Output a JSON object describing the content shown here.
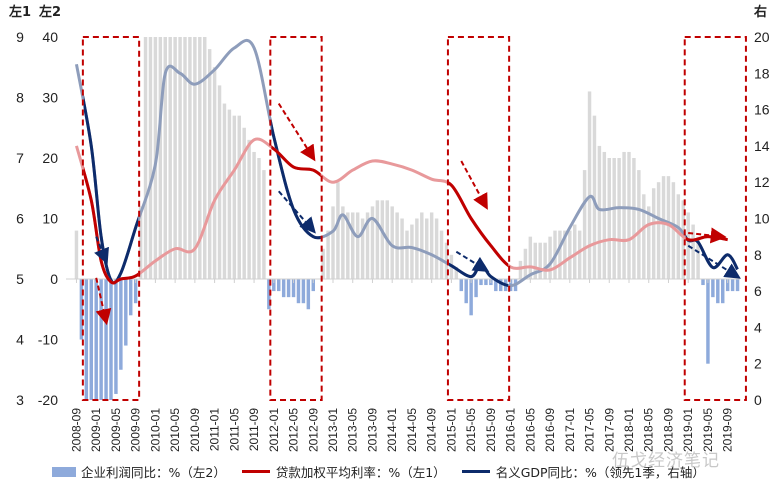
{
  "chart_data": {
    "type": "bar+line",
    "title": "",
    "axes": {
      "left1": {
        "label": "左1",
        "range": [
          3,
          9
        ],
        "ticks": [
          3,
          4,
          5,
          6,
          7,
          8,
          9
        ]
      },
      "left2": {
        "label": "左2",
        "range": [
          -20,
          40
        ],
        "ticks": [
          -20,
          -10,
          0,
          10,
          20,
          30,
          40
        ]
      },
      "right": {
        "label": "右",
        "range": [
          0,
          20
        ],
        "ticks": [
          0,
          2,
          4,
          6,
          8,
          10,
          12,
          14,
          16,
          18,
          20
        ]
      }
    },
    "x_start": "2008-09",
    "x_end": "2019-11",
    "xtick_labels": [
      "2008-09",
      "2009-01",
      "2009-05",
      "2009-09",
      "2010-01",
      "2010-05",
      "2010-09",
      "2011-01",
      "2011-05",
      "2011-09",
      "2012-01",
      "2012-05",
      "2012-09",
      "2013-01",
      "2013-05",
      "2013-09",
      "2014-01",
      "2014-05",
      "2014-09",
      "2015-01",
      "2015-05",
      "2015-09",
      "2016-01",
      "2016-05",
      "2016-09",
      "2017-01",
      "2017-05",
      "2017-09",
      "2018-01",
      "2018-05",
      "2018-09",
      "2019-01",
      "2019-05",
      "2019-09"
    ],
    "legend": [
      {
        "name": "企业利润同比：%（左2）",
        "type": "bar",
        "color": "#8eaadb"
      },
      {
        "name": "贷款加权平均利率：%（左1）",
        "type": "line",
        "color": "#c00000"
      },
      {
        "name": "名义GDP同比：%（领先1季，右轴）",
        "type": "line",
        "color": "#0d2b6b"
      }
    ],
    "legend_position": "bottom",
    "bars_profit_yoy": {
      "axis": "left2",
      "values": [
        8,
        -10,
        -20,
        -20,
        -20,
        -20,
        -20,
        -20,
        -19,
        -15,
        -11,
        -6,
        -4,
        12,
        40,
        40,
        40,
        40,
        40,
        40,
        40,
        40,
        40,
        40,
        40,
        40,
        40,
        38,
        35,
        32,
        29,
        28,
        27,
        27,
        25,
        23,
        21,
        20,
        18,
        -5,
        -2,
        -2,
        -3,
        -3,
        -3,
        -4,
        -4,
        -5,
        -2,
        0,
        5,
        8,
        12,
        16,
        12,
        11,
        11,
        11,
        10,
        11,
        12,
        13,
        13,
        13,
        12,
        11,
        10,
        8,
        9,
        10,
        11,
        10,
        11,
        10,
        8,
        6,
        4,
        2,
        -2,
        -4,
        -6,
        -3,
        -1,
        -1,
        -1,
        -2,
        -2,
        -2,
        -2,
        -2,
        3,
        5,
        7,
        6,
        6,
        6,
        7,
        8,
        8,
        8,
        8,
        9,
        8,
        18,
        31,
        27,
        22,
        21,
        20,
        20,
        20,
        21,
        21,
        20,
        18,
        14,
        12,
        15,
        16,
        17,
        17,
        16,
        14,
        13,
        11,
        9,
        7,
        -1,
        -14,
        -3,
        -4,
        -4,
        -2,
        -2,
        -2,
        -3,
        -4,
        -3,
        0
      ]
    },
    "line_loan_rate": {
      "axis": "left1",
      "points": [
        [
          "2008-09",
          7.2
        ],
        [
          "2008-12",
          6.3
        ],
        [
          "2009-02",
          5.3
        ],
        [
          "2009-04",
          4.95
        ],
        [
          "2009-06",
          5.0
        ],
        [
          "2009-09",
          5.05
        ],
        [
          "2010-01",
          5.3
        ],
        [
          "2010-05",
          5.5
        ],
        [
          "2010-09",
          5.5
        ],
        [
          "2011-01",
          6.3
        ],
        [
          "2011-05",
          6.8
        ],
        [
          "2011-09",
          7.3
        ],
        [
          "2012-01",
          7.15
        ],
        [
          "2012-05",
          6.85
        ],
        [
          "2012-09",
          6.8
        ],
        [
          "2013-01",
          6.6
        ],
        [
          "2013-05",
          6.8
        ],
        [
          "2013-09",
          6.95
        ],
        [
          "2014-01",
          6.9
        ],
        [
          "2014-05",
          6.8
        ],
        [
          "2014-09",
          6.65
        ],
        [
          "2015-01",
          6.55
        ],
        [
          "2015-05",
          6.0
        ],
        [
          "2015-09",
          5.55
        ],
        [
          "2016-01",
          5.2
        ],
        [
          "2016-05",
          5.2
        ],
        [
          "2016-09",
          5.15
        ],
        [
          "2017-01",
          5.35
        ],
        [
          "2017-05",
          5.55
        ],
        [
          "2017-09",
          5.65
        ],
        [
          "2018-01",
          5.65
        ],
        [
          "2018-05",
          5.9
        ],
        [
          "2018-09",
          5.9
        ],
        [
          "2019-01",
          5.65
        ],
        [
          "2019-05",
          5.7
        ],
        [
          "2019-09",
          5.65
        ]
      ]
    },
    "line_nominal_gdp_lead": {
      "axis": "right",
      "points": [
        [
          "2008-09",
          18.5
        ],
        [
          "2008-12",
          14.0
        ],
        [
          "2009-02",
          9.0
        ],
        [
          "2009-04",
          6.6
        ],
        [
          "2009-06",
          7.0
        ],
        [
          "2009-09",
          9.5
        ],
        [
          "2010-01",
          13.0
        ],
        [
          "2010-03",
          18.0
        ],
        [
          "2010-06",
          18.0
        ],
        [
          "2010-09",
          17.4
        ],
        [
          "2011-01",
          18.2
        ],
        [
          "2011-05",
          19.4
        ],
        [
          "2011-09",
          19.4
        ],
        [
          "2012-01",
          14.5
        ],
        [
          "2012-05",
          10.5
        ],
        [
          "2012-09",
          9.0
        ],
        [
          "2013-01",
          9.3
        ],
        [
          "2013-03",
          10.2
        ],
        [
          "2013-06",
          9.0
        ],
        [
          "2013-09",
          10.0
        ],
        [
          "2014-01",
          8.5
        ],
        [
          "2014-05",
          8.4
        ],
        [
          "2014-09",
          8.0
        ],
        [
          "2015-01",
          7.4
        ],
        [
          "2015-05",
          6.8
        ],
        [
          "2015-07",
          7.5
        ],
        [
          "2015-09",
          6.8
        ],
        [
          "2016-01",
          6.3
        ],
        [
          "2016-05",
          6.9
        ],
        [
          "2016-09",
          7.5
        ],
        [
          "2017-01",
          9.5
        ],
        [
          "2017-05",
          11.2
        ],
        [
          "2017-07",
          10.5
        ],
        [
          "2017-11",
          10.6
        ],
        [
          "2018-03",
          10.5
        ],
        [
          "2018-07",
          10.0
        ],
        [
          "2018-11",
          9.5
        ],
        [
          "2019-01",
          8.8
        ],
        [
          "2019-03",
          8.7
        ],
        [
          "2019-06",
          7.3
        ],
        [
          "2019-09",
          8.0
        ],
        [
          "2019-11",
          7.2
        ]
      ]
    },
    "highlight_windows": [
      {
        "from": "2008-11",
        "to": "2009-09"
      },
      {
        "from": "2012-01",
        "to": "2012-10"
      },
      {
        "from": "2015-01",
        "to": "2015-12"
      },
      {
        "from": "2019-01",
        "to": "2019-12"
      }
    ],
    "annotations": "dashed arrows indicate downward trends within highlighted windows"
  },
  "legend_labels": {
    "profit": "企业利润同比：%（左2）",
    "loan": "贷款加权平均利率：%（左1）",
    "gdp": "名义GDP同比：%（领先1季，右轴）"
  },
  "watermark": "伍戈经济笔记"
}
